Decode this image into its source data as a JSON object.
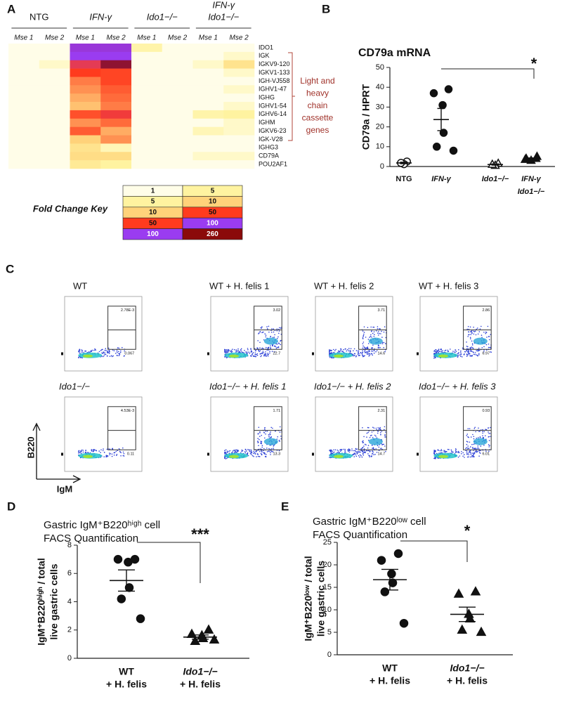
{
  "panel_labels": [
    "A",
    "B",
    "C",
    "D",
    "E"
  ],
  "chart_data": [
    {
      "type": "heatmap",
      "groups": [
        {
          "label": [
            "NTG"
          ],
          "samples": [
            "Mse 1",
            "Mse 2"
          ]
        },
        {
          "label": [
            "IFN-γ"
          ],
          "samples": [
            "Mse 1",
            "Mse 2"
          ]
        },
        {
          "label": [
            "Ido1−/−"
          ],
          "samples": [
            "Mse 1",
            "Mse 2"
          ]
        },
        {
          "label": [
            "IFN-γ",
            "Ido1−/−"
          ],
          "samples": [
            "Mse 1",
            "Mse 2"
          ]
        }
      ],
      "rows": [
        "IDO1",
        "IGK",
        "IGKV9-120",
        "IGKV1-133",
        "IGH-VJ558",
        "IGHV1-47",
        "IGHG",
        "IGHV1-54",
        "IGHV6-14",
        "IGHM",
        "IGKV6-23",
        "IGK-V28",
        "IGHG3",
        "CD79A",
        "POU2AF1"
      ],
      "values": [
        [
          1,
          1,
          110,
          110,
          4,
          1,
          1,
          1
        ],
        [
          1,
          1,
          100,
          100,
          1,
          1,
          1,
          2
        ],
        [
          1,
          2,
          60,
          220,
          1,
          1,
          2,
          7
        ],
        [
          1,
          1,
          50,
          45,
          1,
          1,
          1,
          2
        ],
        [
          1,
          1,
          25,
          45,
          1,
          1,
          1,
          1
        ],
        [
          1,
          1,
          20,
          35,
          1,
          1,
          1,
          2
        ],
        [
          1,
          1,
          15,
          30,
          1,
          1,
          1,
          1
        ],
        [
          1,
          1,
          12,
          25,
          1,
          1,
          1,
          2
        ],
        [
          1,
          1,
          40,
          55,
          1,
          1,
          4,
          5
        ],
        [
          1,
          1,
          20,
          30,
          1,
          1,
          1,
          2
        ],
        [
          1,
          1,
          35,
          15,
          1,
          1,
          3,
          2
        ],
        [
          1,
          1,
          10,
          20,
          1,
          1,
          1,
          1
        ],
        [
          1,
          1,
          7,
          3,
          1,
          1,
          1,
          1
        ],
        [
          1,
          1,
          8,
          8,
          1,
          1,
          2,
          2
        ],
        [
          1,
          1,
          6,
          5,
          1,
          1,
          1,
          1
        ]
      ],
      "bracket_label": [
        "Light and",
        "heavy",
        "chain",
        "cassette",
        "genes"
      ],
      "key_title": "Fold Change Key",
      "key": [
        {
          "values": [
            1,
            5
          ],
          "colors": [
            "#fffde8",
            "#fff3a0"
          ]
        },
        {
          "values": [
            5,
            10
          ],
          "colors": [
            "#fff3a0",
            "#ffd27a"
          ]
        },
        {
          "values": [
            10,
            50
          ],
          "colors": [
            "#ffd27a",
            "#ff3b1e"
          ]
        },
        {
          "values": [
            50,
            100
          ],
          "colors": [
            "#ff3b1e",
            "#9a3cf0"
          ]
        },
        {
          "values": [
            100,
            260
          ],
          "colors": [
            "#9a3cf0",
            "#8b0a0a"
          ]
        }
      ]
    },
    {
      "type": "strip",
      "title": [
        "CD79a mRNA"
      ],
      "ylabel": [
        "CD79a / HPRT"
      ],
      "ylim": [
        0,
        50
      ],
      "yticks": [
        0,
        10,
        20,
        30,
        40,
        50
      ],
      "significance": "*",
      "groups": [
        {
          "label": [
            "NTG"
          ],
          "marker": "circle",
          "filled": false,
          "values": [
            2.5,
            1.2,
            1.8
          ],
          "mean": 1.8,
          "sem": 0.4
        },
        {
          "label": [
            "IFN-γ"
          ],
          "marker": "circle",
          "filled": true,
          "values": [
            39,
            37,
            31,
            17,
            10,
            8
          ],
          "mean": 23.7,
          "sem": 5.6
        },
        {
          "label": [
            "Ido1−/−"
          ],
          "marker": "triangle",
          "filled": false,
          "values": [
            1.5,
            0.5,
            1
          ],
          "mean": 1,
          "sem": 0.3
        },
        {
          "label": [
            "IFN-γ",
            "Ido1−/−"
          ],
          "marker": "triangle",
          "filled": true,
          "values": [
            5,
            4,
            3,
            4,
            3.5
          ],
          "mean": 3.9,
          "sem": 0.4
        }
      ]
    },
    {
      "type": "flow",
      "xlabel": "IgM",
      "ylabel": "B220",
      "plots": [
        {
          "title": "WT",
          "gates": [
            "2.78E-3",
            "0.067"
          ]
        },
        {
          "title": "WT + H. felis 1",
          "gates": [
            "3.02",
            "22.7"
          ]
        },
        {
          "title": "WT + H. felis 2",
          "gates": [
            "3.71",
            "14.6"
          ]
        },
        {
          "title": "WT + H. felis 3",
          "gates": [
            "2.86",
            "6.97"
          ]
        },
        {
          "title": "Ido1−/−",
          "gates": [
            "4.53E-3",
            "0.11"
          ]
        },
        {
          "title": "Ido1−/− + H. felis 1",
          "gates": [
            "1.71",
            "13.3"
          ]
        },
        {
          "title": "Ido1−/− + H. felis 2",
          "gates": [
            "2.31",
            "14.7"
          ]
        },
        {
          "title": "Ido1−/− + H. felis 3",
          "gates": [
            "0.93",
            "6.01"
          ]
        }
      ]
    },
    {
      "type": "strip",
      "title": [
        "Gastric IgM⁺B220ʰⁱᵍʰ cell",
        "FACS Quantification"
      ],
      "ylabel": [
        "IgM⁺B220ʰⁱᵍʰ / total",
        "live gastric cells"
      ],
      "ylim": [
        0,
        8
      ],
      "yticks": [
        0,
        2,
        4,
        6,
        8
      ],
      "significance": "***",
      "groups": [
        {
          "label": [
            "WT",
            "+ H. felis"
          ],
          "marker": "circle",
          "filled": true,
          "values": [
            7,
            7,
            6.8,
            5,
            4.2,
            2.8
          ],
          "mean": 5.5,
          "sem": 0.75
        },
        {
          "label": [
            "Ido1−/−",
            "+ H. felis"
          ],
          "marker": "triangle",
          "filled": true,
          "values": [
            2,
            1.7,
            1.6,
            1.4,
            1.2,
            1.3
          ],
          "mean": 1.5,
          "sem": 0.15
        }
      ]
    },
    {
      "type": "strip",
      "title": [
        "Gastric IgM⁺B220ˡᵒʷ cell",
        "FACS Quantification"
      ],
      "ylabel": [
        "IgM⁺B220ˡᵒʷ / total",
        "live gastric cells"
      ],
      "ylim": [
        0,
        25
      ],
      "yticks": [
        0,
        5,
        10,
        15,
        20,
        25
      ],
      "significance": "*",
      "groups": [
        {
          "label": [
            "WT",
            "+ H. felis"
          ],
          "marker": "circle",
          "filled": true,
          "values": [
            22.5,
            21,
            18,
            16,
            14,
            7
          ],
          "mean": 16.7,
          "sem": 2.3
        },
        {
          "label": [
            "Ido1−/−",
            "+ H. felis"
          ],
          "marker": "triangle",
          "filled": true,
          "values": [
            14,
            13.5,
            9,
            8,
            5.5,
            5
          ],
          "mean": 9,
          "sem": 1.6
        }
      ]
    }
  ]
}
